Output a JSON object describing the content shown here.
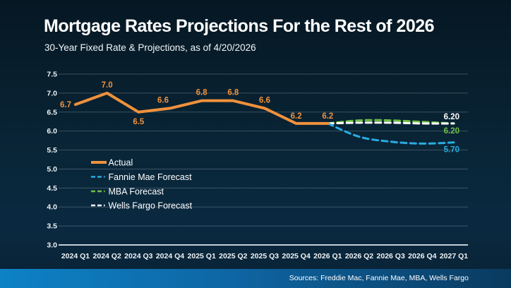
{
  "header": {
    "title": "Mortgage Rates Projections For the Rest of 2026",
    "subtitle": "30-Year Fixed Rate & Projections, as of 4/20/2026"
  },
  "footer": {
    "sources": "Sources: Freddie Mac, Fannie Mae, MBA, Wells Fargo"
  },
  "colors": {
    "background_top": "#061723",
    "background_bottom": "#0a2940",
    "actual_orange": "#f0913c",
    "fannie_mae_blue": "#29abe2",
    "mba_green": "#71bf44",
    "wells_fargo_white": "#ffffff",
    "footer_bar_left": "#0d82c6",
    "footer_bar_right": "#0a3a5f",
    "gridline": "rgba(190,206,218,0.28)"
  },
  "chart_data": {
    "type": "line",
    "title": "Mortgage Rates Projections For the Rest of 2026",
    "subtitle": "30-Year Fixed Rate & Projections, as of 4/20/2026",
    "categories": [
      "2024 Q1",
      "2024 Q2",
      "2024 Q3",
      "2024 Q4",
      "2025 Q1",
      "2025 Q2",
      "2025 Q3",
      "2025 Q4",
      "2026 Q1",
      "2026 Q2",
      "2026 Q3",
      "2026 Q4",
      "2027 Q1"
    ],
    "ylim": [
      3.0,
      7.5
    ],
    "yticks": [
      7.5,
      7.0,
      6.5,
      6.0,
      5.5,
      5.0,
      4.5,
      4.0,
      3.5,
      3.0
    ],
    "ytick_labels": [
      "7.5",
      "7.0",
      "6.5",
      "6.0",
      "5.5",
      "5.0",
      "4.5",
      "4.0",
      "3.5",
      "3.0"
    ],
    "grid": "horizontal",
    "legend_position": "inside-left",
    "series": [
      {
        "name": "Actual",
        "color": "#f0913c",
        "style": "solid",
        "start_index": 0,
        "values": [
          6.7,
          7.0,
          6.5,
          6.6,
          6.8,
          6.8,
          6.6,
          6.2,
          6.2
        ],
        "point_labels": [
          "6.7",
          "7.0",
          "6.5",
          "6.6",
          "6.8",
          "6.8",
          "6.6",
          "6.2",
          "6.2"
        ]
      },
      {
        "name": "Fannie Mae Forecast",
        "color": "#29abe2",
        "style": "dashed",
        "start_index": 8,
        "values": [
          6.2,
          5.85,
          5.72,
          5.67,
          5.7
        ],
        "end_label": "5.70"
      },
      {
        "name": "MBA Forecast",
        "color": "#71bf44",
        "style": "dashed",
        "start_index": 8,
        "values": [
          6.2,
          6.28,
          6.28,
          6.24,
          6.2
        ],
        "end_label": "6.20"
      },
      {
        "name": "Wells Fargo Forecast",
        "color": "#ffffff",
        "style": "dashed",
        "start_index": 8,
        "values": [
          6.2,
          6.22,
          6.22,
          6.2,
          6.2
        ],
        "end_label": "6.20"
      }
    ]
  }
}
